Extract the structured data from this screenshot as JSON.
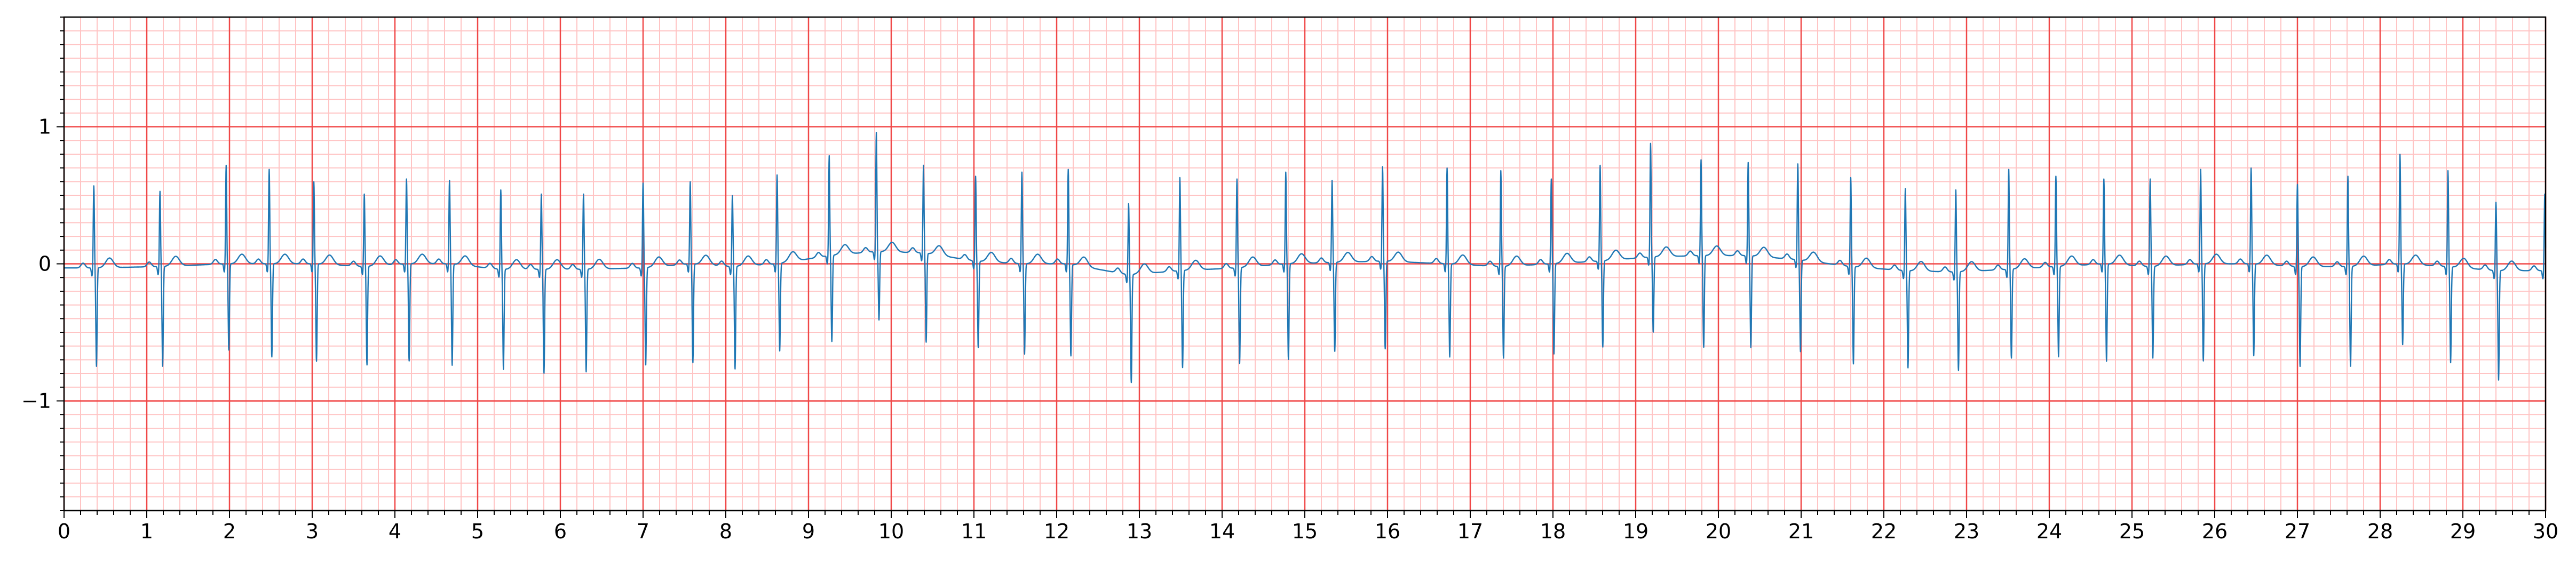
{
  "chart_data": {
    "type": "line",
    "title": "",
    "xlabel": "",
    "ylabel": "",
    "xlim": [
      0,
      30
    ],
    "ylim": [
      -1.8,
      1.8
    ],
    "x_ticks": [
      0,
      1,
      2,
      3,
      4,
      5,
      6,
      7,
      8,
      9,
      10,
      11,
      12,
      13,
      14,
      15,
      16,
      17,
      18,
      19,
      20,
      21,
      22,
      23,
      24,
      25,
      26,
      27,
      28,
      29,
      30
    ],
    "x_tick_labels": [
      "0",
      "1",
      "2",
      "3",
      "4",
      "5",
      "6",
      "7",
      "8",
      "9",
      "10",
      "11",
      "12",
      "13",
      "14",
      "15",
      "16",
      "17",
      "18",
      "19",
      "20",
      "21",
      "22",
      "23",
      "24",
      "25",
      "26",
      "27",
      "28",
      "29",
      "30"
    ],
    "y_ticks": [
      -1,
      0,
      1
    ],
    "y_tick_labels": [
      "−1",
      "0",
      "1"
    ],
    "grid": {
      "major_x_step": 1,
      "minor_x_step": 0.2,
      "major_y_step": 1,
      "minor_y_step": 0.1
    },
    "colors": {
      "major_grid": "#f04848",
      "minor_grid": "#ffc4c4",
      "trace": "#1f77b4",
      "axes": "#000000"
    },
    "series": [
      {
        "name": "",
        "note_r_peak_times": [
          0.36,
          1.16,
          1.96,
          2.48,
          3.02,
          3.63,
          4.14,
          4.66,
          5.28,
          5.77,
          6.28,
          7.0,
          7.57,
          8.08,
          8.62,
          9.25,
          9.82,
          10.39,
          11.02,
          11.58,
          12.14,
          12.87,
          13.49,
          14.18,
          14.77,
          15.33,
          15.94,
          16.72,
          17.37,
          17.98,
          18.57,
          19.18,
          19.79,
          20.36,
          20.96,
          21.6,
          22.26,
          22.87,
          23.51,
          24.08,
          24.66,
          25.22,
          25.83,
          26.44,
          27.0,
          27.61,
          28.24,
          28.82,
          29.4,
          29.99
        ],
        "r_peak_times": [
          0.36,
          1.16,
          1.96,
          2.48,
          3.02,
          3.63,
          4.14,
          4.66,
          5.28,
          5.77,
          6.28,
          7.0,
          7.57,
          8.08,
          8.62,
          9.25,
          9.82,
          10.39,
          11.02,
          11.58,
          12.14,
          12.87,
          13.49,
          14.18,
          14.77,
          15.33,
          15.94,
          16.72,
          17.37,
          17.98,
          18.57,
          19.18,
          19.79,
          20.36,
          20.96,
          21.6,
          22.26,
          22.87,
          23.51,
          24.08,
          24.66,
          25.22,
          25.83,
          26.44,
          27.0,
          27.61,
          28.24,
          28.82,
          29.4,
          29.99
        ],
        "r_peak_values": [
          0.6,
          0.55,
          0.72,
          0.69,
          0.6,
          0.53,
          0.62,
          0.61,
          0.58,
          0.55,
          0.55,
          0.62,
          0.6,
          0.52,
          0.65,
          0.73,
          0.87,
          0.64,
          0.62,
          0.67,
          0.69,
          0.52,
          0.68,
          0.65,
          0.67,
          0.6,
          0.69,
          0.7,
          0.7,
          0.62,
          0.7,
          0.83,
          0.7,
          0.68,
          0.7,
          0.65,
          0.6,
          0.6,
          0.73,
          0.66,
          0.62,
          0.64,
          0.69,
          0.7,
          0.6,
          0.66,
          0.8,
          0.7,
          0.5,
          0.56
        ],
        "s_trough_values": [
          -0.72,
          -0.73,
          -0.63,
          -0.68,
          -0.71,
          -0.72,
          -0.71,
          -0.74,
          -0.73,
          -0.76,
          -0.75,
          -0.71,
          -0.72,
          -0.75,
          -0.64,
          -0.63,
          -0.5,
          -0.65,
          -0.63,
          -0.66,
          -0.67,
          -0.79,
          -0.71,
          -0.7,
          -0.7,
          -0.65,
          -0.64,
          -0.68,
          -0.67,
          -0.66,
          -0.63,
          -0.55,
          -0.67,
          -0.67,
          -0.67,
          -0.71,
          -0.71,
          -0.72,
          -0.65,
          -0.66,
          -0.71,
          -0.67,
          -0.71,
          -0.67,
          -0.73,
          -0.73,
          -0.59,
          -0.7,
          -0.8,
          -0.2
        ],
        "baseline_values": [
          -0.03,
          -0.02,
          0.0,
          0.0,
          0.0,
          -0.02,
          0.0,
          0.0,
          -0.04,
          -0.04,
          -0.04,
          -0.03,
          0.0,
          -0.02,
          0.0,
          0.06,
          0.09,
          0.08,
          0.02,
          0.0,
          0.0,
          -0.08,
          -0.05,
          -0.03,
          0.0,
          0.01,
          0.02,
          0.0,
          -0.02,
          0.0,
          0.02,
          0.05,
          0.06,
          0.06,
          0.03,
          -0.02,
          -0.05,
          -0.06,
          -0.04,
          -0.02,
          0.0,
          -0.02,
          0.0,
          0.0,
          -0.02,
          -0.02,
          0.0,
          -0.02,
          -0.05,
          -0.05
        ]
      }
    ]
  }
}
